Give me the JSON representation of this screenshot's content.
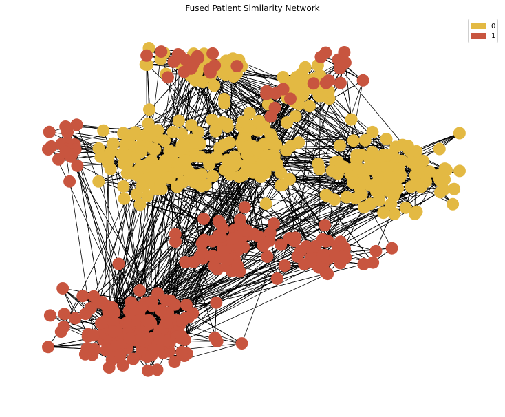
{
  "title": "Fused Patient Similarity Network",
  "legend": [
    {
      "label": "0",
      "color": "#E3B943"
    },
    {
      "label": "1",
      "color": "#C8553F"
    }
  ],
  "colors": {
    "edge": "#000000",
    "class0": "#E3B943",
    "class1": "#C8553F"
  },
  "clusters": [
    {
      "class": "0",
      "center": [
        230,
        230
      ],
      "spread": [
        70,
        45
      ],
      "count": 110
    },
    {
      "class": "0",
      "center": [
        360,
        220
      ],
      "spread": [
        55,
        55
      ],
      "count": 90
    },
    {
      "class": "0",
      "center": [
        560,
        255
      ],
      "spread": [
        80,
        40
      ],
      "count": 120
    },
    {
      "class": "0",
      "center": [
        300,
        95
      ],
      "spread": [
        70,
        25
      ],
      "count": 45
    },
    {
      "class": "0",
      "center": [
        440,
        120
      ],
      "spread": [
        40,
        25
      ],
      "count": 35
    },
    {
      "class": "1",
      "center": [
        200,
        480
      ],
      "spread": [
        80,
        40
      ],
      "count": 170
    },
    {
      "class": "1",
      "center": [
        330,
        350
      ],
      "spread": [
        60,
        45
      ],
      "count": 60
    },
    {
      "class": "1",
      "center": [
        480,
        370
      ],
      "spread": [
        70,
        25
      ],
      "count": 45
    },
    {
      "class": "1",
      "center": [
        95,
        210
      ],
      "spread": [
        18,
        50
      ],
      "count": 18
    },
    {
      "class": "1",
      "center": [
        280,
        95
      ],
      "spread": [
        45,
        20
      ],
      "count": 18
    },
    {
      "class": "1",
      "center": [
        495,
        105
      ],
      "spread": [
        25,
        25
      ],
      "count": 12
    },
    {
      "class": "1",
      "center": [
        400,
        150
      ],
      "spread": [
        20,
        25
      ],
      "count": 8
    }
  ],
  "edge_density": 1.6
}
